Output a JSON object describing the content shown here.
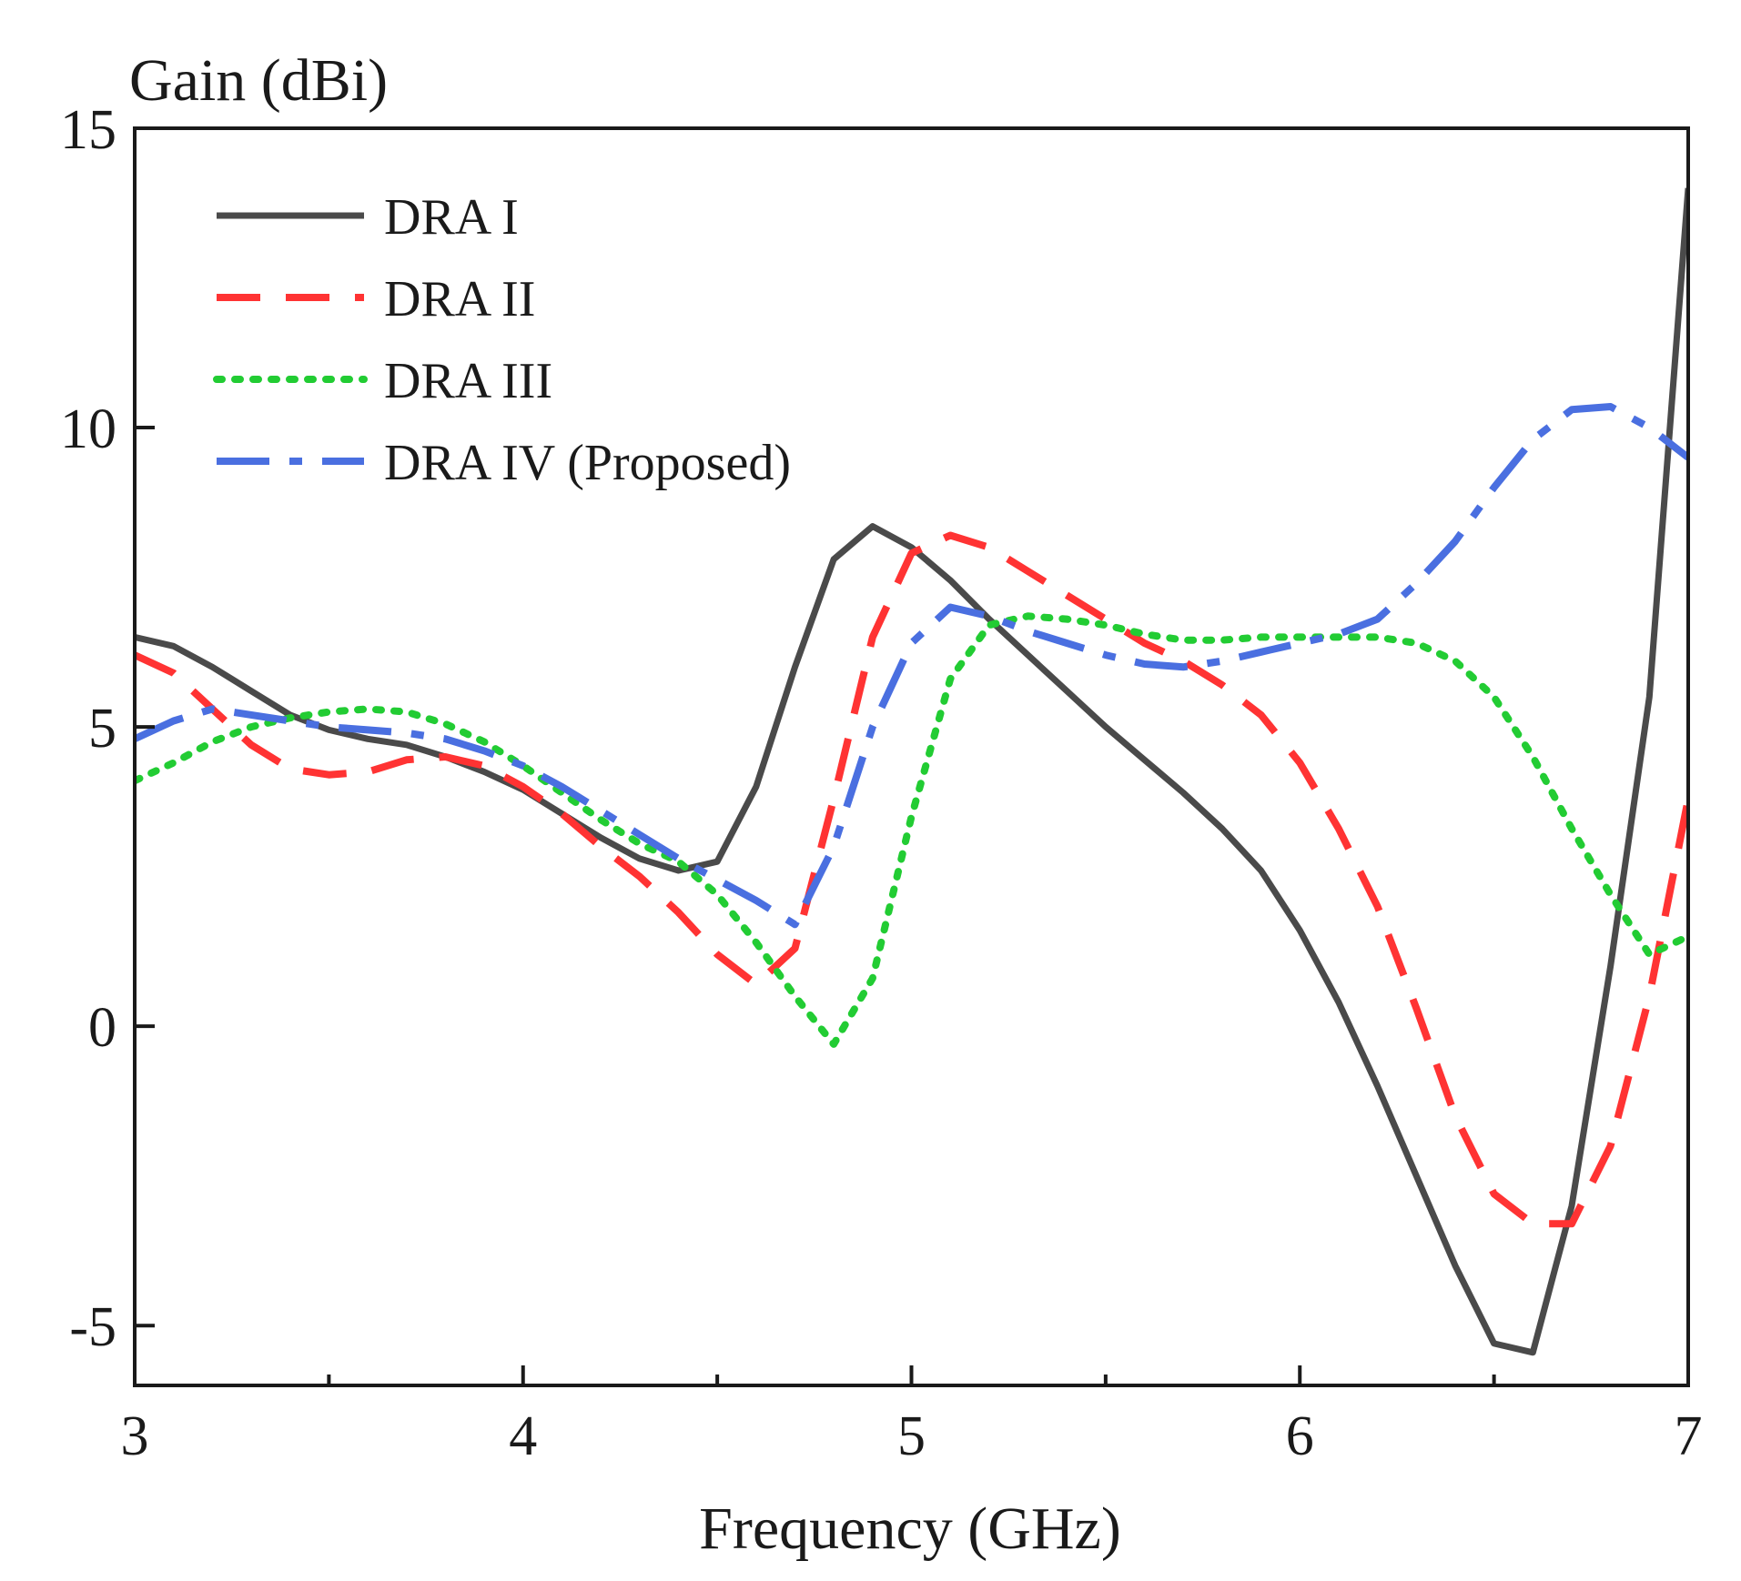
{
  "chart_data": {
    "type": "line",
    "title": "",
    "xlabel": "Frequency (GHz)",
    "ylabel": "Gain (dBi)",
    "xlim": [
      3,
      7
    ],
    "ylim": [
      -6,
      15
    ],
    "x_ticks": [
      3,
      4,
      5,
      6,
      7
    ],
    "x_tick_labels": [
      "3",
      "4",
      "5",
      "6",
      "7"
    ],
    "y_ticks": [
      -5,
      0,
      5,
      10,
      15
    ],
    "y_tick_labels": [
      "-5",
      "0",
      "5",
      "10",
      "15"
    ],
    "x_minor_ticks": [
      3.5,
      4.5,
      5.5,
      6.5
    ],
    "grid": false,
    "legend_position": "top-left",
    "series": [
      {
        "name": "DRA I",
        "color": "#4a4a4a",
        "style": "solid",
        "points": [
          [
            3.0,
            6.5
          ],
          [
            3.1,
            6.35
          ],
          [
            3.2,
            6.0
          ],
          [
            3.3,
            5.6
          ],
          [
            3.4,
            5.2
          ],
          [
            3.5,
            4.95
          ],
          [
            3.6,
            4.8
          ],
          [
            3.7,
            4.7
          ],
          [
            3.8,
            4.5
          ],
          [
            3.9,
            4.25
          ],
          [
            4.0,
            3.95
          ],
          [
            4.1,
            3.55
          ],
          [
            4.2,
            3.15
          ],
          [
            4.3,
            2.8
          ],
          [
            4.4,
            2.6
          ],
          [
            4.5,
            2.75
          ],
          [
            4.6,
            4.0
          ],
          [
            4.7,
            6.0
          ],
          [
            4.8,
            7.8
          ],
          [
            4.9,
            8.35
          ],
          [
            5.0,
            8.0
          ],
          [
            5.1,
            7.45
          ],
          [
            5.2,
            6.8
          ],
          [
            5.3,
            6.2
          ],
          [
            5.4,
            5.6
          ],
          [
            5.5,
            5.0
          ],
          [
            5.6,
            4.45
          ],
          [
            5.7,
            3.9
          ],
          [
            5.8,
            3.3
          ],
          [
            5.9,
            2.6
          ],
          [
            6.0,
            1.6
          ],
          [
            6.1,
            0.4
          ],
          [
            6.2,
            -1.0
          ],
          [
            6.3,
            -2.5
          ],
          [
            6.4,
            -4.0
          ],
          [
            6.5,
            -5.3
          ],
          [
            6.6,
            -5.45
          ],
          [
            6.7,
            -3.0
          ],
          [
            6.8,
            1.0
          ],
          [
            6.9,
            5.5
          ],
          [
            7.0,
            14.0
          ]
        ]
      },
      {
        "name": "DRA II",
        "color": "#ff3333",
        "style": "dashed",
        "points": [
          [
            3.0,
            6.2
          ],
          [
            3.1,
            5.9
          ],
          [
            3.2,
            5.3
          ],
          [
            3.3,
            4.7
          ],
          [
            3.4,
            4.3
          ],
          [
            3.5,
            4.2
          ],
          [
            3.6,
            4.25
          ],
          [
            3.7,
            4.45
          ],
          [
            3.8,
            4.5
          ],
          [
            3.9,
            4.35
          ],
          [
            4.0,
            4.0
          ],
          [
            4.1,
            3.55
          ],
          [
            4.2,
            3.0
          ],
          [
            4.3,
            2.5
          ],
          [
            4.4,
            1.9
          ],
          [
            4.5,
            1.2
          ],
          [
            4.6,
            0.7
          ],
          [
            4.7,
            1.3
          ],
          [
            4.8,
            3.8
          ],
          [
            4.9,
            6.5
          ],
          [
            5.0,
            7.9
          ],
          [
            5.1,
            8.2
          ],
          [
            5.2,
            8.0
          ],
          [
            5.3,
            7.6
          ],
          [
            5.4,
            7.2
          ],
          [
            5.5,
            6.8
          ],
          [
            5.6,
            6.4
          ],
          [
            5.7,
            6.1
          ],
          [
            5.8,
            5.7
          ],
          [
            5.9,
            5.2
          ],
          [
            6.0,
            4.4
          ],
          [
            6.1,
            3.3
          ],
          [
            6.2,
            2.0
          ],
          [
            6.3,
            0.3
          ],
          [
            6.4,
            -1.5
          ],
          [
            6.5,
            -2.8
          ],
          [
            6.6,
            -3.3
          ],
          [
            6.7,
            -3.3
          ],
          [
            6.8,
            -2.0
          ],
          [
            6.9,
            0.5
          ],
          [
            7.0,
            3.8
          ]
        ]
      },
      {
        "name": "DRA III",
        "color": "#22cc33",
        "style": "dotted",
        "points": [
          [
            3.0,
            4.1
          ],
          [
            3.1,
            4.4
          ],
          [
            3.2,
            4.75
          ],
          [
            3.3,
            5.0
          ],
          [
            3.4,
            5.15
          ],
          [
            3.5,
            5.25
          ],
          [
            3.6,
            5.3
          ],
          [
            3.7,
            5.25
          ],
          [
            3.8,
            5.05
          ],
          [
            3.9,
            4.75
          ],
          [
            4.0,
            4.35
          ],
          [
            4.1,
            3.9
          ],
          [
            4.2,
            3.45
          ],
          [
            4.3,
            3.05
          ],
          [
            4.4,
            2.75
          ],
          [
            4.5,
            2.2
          ],
          [
            4.6,
            1.4
          ],
          [
            4.7,
            0.5
          ],
          [
            4.8,
            -0.3
          ],
          [
            4.9,
            0.8
          ],
          [
            5.0,
            3.5
          ],
          [
            5.1,
            5.8
          ],
          [
            5.2,
            6.7
          ],
          [
            5.3,
            6.85
          ],
          [
            5.4,
            6.8
          ],
          [
            5.5,
            6.7
          ],
          [
            5.6,
            6.55
          ],
          [
            5.7,
            6.45
          ],
          [
            5.8,
            6.45
          ],
          [
            5.9,
            6.5
          ],
          [
            6.0,
            6.5
          ],
          [
            6.1,
            6.5
          ],
          [
            6.2,
            6.5
          ],
          [
            6.3,
            6.4
          ],
          [
            6.4,
            6.1
          ],
          [
            6.5,
            5.5
          ],
          [
            6.6,
            4.5
          ],
          [
            6.7,
            3.3
          ],
          [
            6.8,
            2.2
          ],
          [
            6.9,
            1.2
          ],
          [
            7.0,
            1.5
          ]
        ]
      },
      {
        "name": "DRA IV (Proposed)",
        "color": "#4a6fe0",
        "style": "dashdot",
        "points": [
          [
            3.0,
            4.8
          ],
          [
            3.1,
            5.1
          ],
          [
            3.2,
            5.3
          ],
          [
            3.3,
            5.2
          ],
          [
            3.4,
            5.1
          ],
          [
            3.5,
            5.0
          ],
          [
            3.6,
            4.95
          ],
          [
            3.7,
            4.9
          ],
          [
            3.8,
            4.8
          ],
          [
            3.9,
            4.6
          ],
          [
            4.0,
            4.35
          ],
          [
            4.1,
            4.0
          ],
          [
            4.2,
            3.6
          ],
          [
            4.3,
            3.2
          ],
          [
            4.4,
            2.8
          ],
          [
            4.5,
            2.45
          ],
          [
            4.6,
            2.1
          ],
          [
            4.7,
            1.7
          ],
          [
            4.8,
            3.0
          ],
          [
            4.9,
            5.0
          ],
          [
            5.0,
            6.4
          ],
          [
            5.1,
            7.0
          ],
          [
            5.2,
            6.85
          ],
          [
            5.3,
            6.6
          ],
          [
            5.4,
            6.4
          ],
          [
            5.5,
            6.2
          ],
          [
            5.6,
            6.05
          ],
          [
            5.7,
            6.0
          ],
          [
            5.8,
            6.1
          ],
          [
            5.9,
            6.25
          ],
          [
            6.0,
            6.4
          ],
          [
            6.1,
            6.55
          ],
          [
            6.2,
            6.8
          ],
          [
            6.3,
            7.4
          ],
          [
            6.4,
            8.1
          ],
          [
            6.5,
            9.0
          ],
          [
            6.6,
            9.8
          ],
          [
            6.7,
            10.3
          ],
          [
            6.8,
            10.35
          ],
          [
            6.9,
            10.0
          ],
          [
            7.0,
            9.5
          ]
        ]
      }
    ]
  }
}
